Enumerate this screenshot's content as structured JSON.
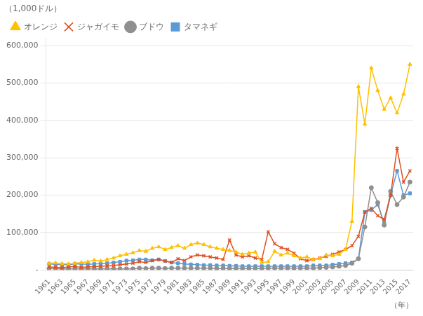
{
  "chart_data": {
    "type": "line",
    "y_label": "（1,000ドル）",
    "x_label": "（年）",
    "x": [
      1961,
      1962,
      1963,
      1964,
      1965,
      1966,
      1967,
      1968,
      1969,
      1970,
      1971,
      1972,
      1973,
      1974,
      1975,
      1976,
      1977,
      1978,
      1979,
      1980,
      1981,
      1982,
      1983,
      1984,
      1985,
      1986,
      1987,
      1988,
      1989,
      1990,
      1991,
      1992,
      1993,
      1994,
      1995,
      1996,
      1997,
      1998,
      1999,
      2000,
      2001,
      2002,
      2003,
      2004,
      2005,
      2006,
      2007,
      2008,
      2009,
      2010,
      2011,
      2012,
      2013,
      2014,
      2015,
      2016,
      2017
    ],
    "series": [
      {
        "name": "オレンジ",
        "color": "#FFC000",
        "marker": "triangle",
        "values": [
          18000,
          19000,
          17000,
          16000,
          18000,
          20000,
          22000,
          26000,
          24000,
          28000,
          32000,
          38000,
          42000,
          46000,
          52000,
          50000,
          58000,
          62000,
          55000,
          60000,
          65000,
          58000,
          68000,
          72000,
          68000,
          62000,
          58000,
          55000,
          52000,
          48000,
          42000,
          45000,
          48000,
          20000,
          22000,
          50000,
          40000,
          45000,
          38000,
          32000,
          35000,
          28000,
          30000,
          40000,
          38000,
          42000,
          55000,
          130000,
          490000,
          390000,
          540000,
          480000,
          430000,
          460000,
          420000,
          470000,
          550000
        ]
      },
      {
        "name": "ジャガイモ",
        "color": "#E05020",
        "marker": "x",
        "values": [
          8000,
          7000,
          6000,
          8000,
          9000,
          7000,
          8000,
          9000,
          10000,
          11000,
          12000,
          14000,
          16000,
          18000,
          22000,
          20000,
          25000,
          28000,
          24000,
          20000,
          30000,
          25000,
          35000,
          40000,
          38000,
          35000,
          32000,
          28000,
          80000,
          40000,
          35000,
          38000,
          32000,
          28000,
          102000,
          70000,
          60000,
          55000,
          45000,
          30000,
          25000,
          28000,
          32000,
          36000,
          42000,
          48000,
          55000,
          65000,
          90000,
          155000,
          165000,
          145000,
          135000,
          200000,
          325000,
          235000,
          265000
        ]
      },
      {
        "name": "ブドウ",
        "color": "#909090",
        "marker": "circle",
        "values": [
          4000,
          3500,
          3000,
          3000,
          3000,
          3000,
          3000,
          3000,
          3000,
          3000,
          3000,
          3000,
          3000,
          3000,
          5000,
          4000,
          5000,
          5000,
          4000,
          5000,
          5000,
          5000,
          5000,
          5000,
          5000,
          5000,
          4000,
          4000,
          4000,
          4000,
          4000,
          4000,
          4000,
          4000,
          5000,
          5000,
          5000,
          5000,
          5000,
          5000,
          5000,
          5000,
          6000,
          7000,
          8000,
          10000,
          12000,
          18000,
          30000,
          115000,
          220000,
          180000,
          120000,
          210000,
          175000,
          195000,
          235000
        ]
      },
      {
        "name": "タマネギ",
        "color": "#5B9BD5",
        "marker": "square",
        "values": [
          16000,
          15000,
          14000,
          14000,
          16000,
          16000,
          15000,
          16000,
          17000,
          18000,
          20000,
          22000,
          25000,
          26000,
          28000,
          28000,
          26000,
          28000,
          24000,
          20000,
          18000,
          16000,
          15000,
          14000,
          13000,
          13000,
          12000,
          12000,
          11000,
          11000,
          10000,
          10000,
          10000,
          10000,
          10000,
          10000,
          10000,
          10000,
          10000,
          10000,
          10000,
          12000,
          12000,
          12000,
          14000,
          16000,
          18000,
          20000,
          30000,
          155000,
          160000,
          175000,
          125000,
          200000,
          265000,
          200000,
          205000
        ]
      }
    ],
    "xlim": [
      1960.5,
      2017.5
    ],
    "xticks": [
      1961,
      1963,
      1965,
      1967,
      1969,
      1971,
      1973,
      1975,
      1977,
      1979,
      1981,
      1983,
      1985,
      1987,
      1989,
      1991,
      1993,
      1995,
      1997,
      1999,
      2001,
      2003,
      2005,
      2007,
      2009,
      2011,
      2013,
      2015,
      2017
    ],
    "ylim": [
      0,
      620000
    ],
    "yticks": [
      {
        "value": 0,
        "label": "-"
      },
      {
        "value": 100000,
        "label": "100,000"
      },
      {
        "value": 200000,
        "label": "200,000"
      },
      {
        "value": 300000,
        "label": "300,000"
      },
      {
        "value": 400000,
        "label": "400,000"
      },
      {
        "value": 500000,
        "label": "500,000"
      },
      {
        "value": 600000,
        "label": "600,000"
      }
    ],
    "grid": "y",
    "legend": "upper left"
  }
}
